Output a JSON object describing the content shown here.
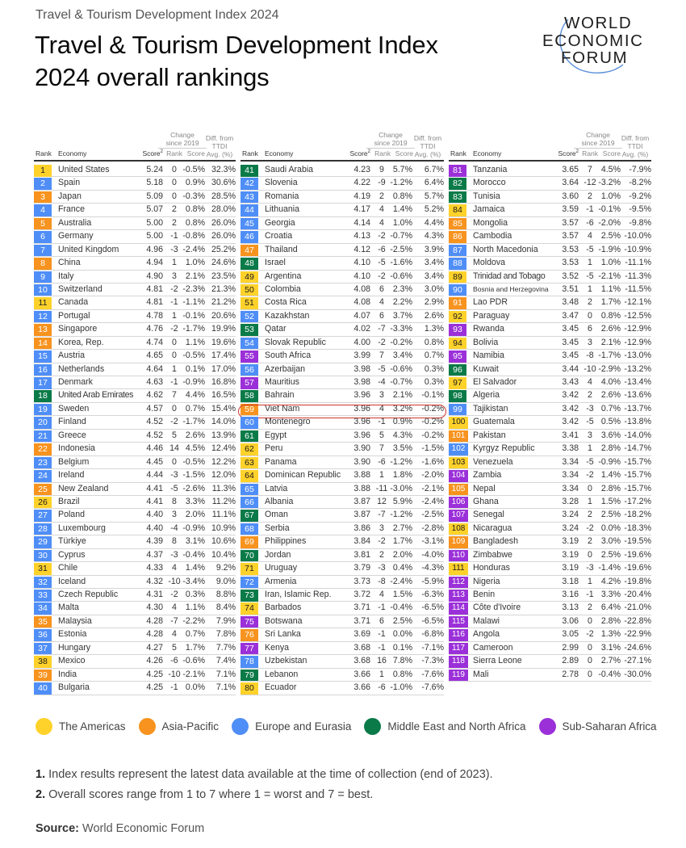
{
  "header": {
    "kicker": "Travel & Tourism Development Index 2024",
    "title_line1": "Travel & Tourism Development Index",
    "title_line2": "2024 overall rankings"
  },
  "logo": {
    "line1": "WORLD",
    "line2": "ECONOMIC",
    "line3": "FORUM"
  },
  "columns": {
    "rank": "Rank",
    "economy": "Economy",
    "score": "Score",
    "score_sup": "2",
    "change_group_1": "Change",
    "change_group_2": "since 2019",
    "change_rank": "Rank",
    "change_score": "Score",
    "diff_1": "Diff. from",
    "diff_2": "TTDI",
    "diff_3": "Avg. (%)"
  },
  "region_colors": {
    "americas": "#FFD22B",
    "asia": "#F7931E",
    "europe": "#4F8EF7",
    "mena": "#0A7A48",
    "ssa": "#9B30D9"
  },
  "highlight": {
    "rank": 59,
    "economy": "Viet Nam",
    "outline_color": "#D0352B"
  },
  "legend": [
    {
      "key": "americas",
      "label": "The Americas",
      "color": "#FFD22B"
    },
    {
      "key": "asia",
      "label": "Asia-Pacific",
      "color": "#F7931E"
    },
    {
      "key": "europe",
      "label": "Europe and Eurasia",
      "color": "#4F8EF7"
    },
    {
      "key": "mena",
      "label": "Middle East and North Africa",
      "color": "#0A7A48"
    },
    {
      "key": "ssa",
      "label": "Sub-Saharan Africa",
      "color": "#9B30D9"
    }
  ],
  "notes": {
    "n1_num": "1.",
    "n1_text": " Index results represent the latest data available at the time of collection (end of 2023).",
    "n2_num": "2.",
    "n2_text": " Overall scores range from 1 to 7 where 1 = worst and 7 = best."
  },
  "source": {
    "label": "Source:",
    "text": " World Economic Forum"
  },
  "chart_data": {
    "type": "table",
    "title": "Travel & Tourism Development Index 2024 overall rankings",
    "columns": [
      "Rank",
      "Economy",
      "Score",
      "Change since 2019 Rank",
      "Change since 2019 Score",
      "Diff. from TTDI Avg. (%)"
    ],
    "rows": [
      [
        1,
        "United States",
        "5.24",
        "0",
        "-0.5%",
        "32.3%",
        "americas"
      ],
      [
        2,
        "Spain",
        "5.18",
        "0",
        "0.9%",
        "30.6%",
        "europe"
      ],
      [
        3,
        "Japan",
        "5.09",
        "0",
        "-0.3%",
        "28.5%",
        "asia"
      ],
      [
        4,
        "France",
        "5.07",
        "2",
        "0.8%",
        "28.0%",
        "europe"
      ],
      [
        5,
        "Australia",
        "5.00",
        "2",
        "0.8%",
        "26.0%",
        "asia"
      ],
      [
        6,
        "Germany",
        "5.00",
        "-1",
        "-0.8%",
        "26.0%",
        "europe"
      ],
      [
        7,
        "United Kingdom",
        "4.96",
        "-3",
        "-2.4%",
        "25.2%",
        "europe"
      ],
      [
        8,
        "China",
        "4.94",
        "1",
        "1.0%",
        "24.6%",
        "asia"
      ],
      [
        9,
        "Italy",
        "4.90",
        "3",
        "2.1%",
        "23.5%",
        "europe"
      ],
      [
        10,
        "Switzerland",
        "4.81",
        "-2",
        "-2.3%",
        "21.3%",
        "europe"
      ],
      [
        11,
        "Canada",
        "4.81",
        "-1",
        "-1.1%",
        "21.2%",
        "americas"
      ],
      [
        12,
        "Portugal",
        "4.78",
        "1",
        "-0.1%",
        "20.6%",
        "europe"
      ],
      [
        13,
        "Singapore",
        "4.76",
        "-2",
        "-1.7%",
        "19.9%",
        "asia"
      ],
      [
        14,
        "Korea, Rep.",
        "4.74",
        "0",
        "1.1%",
        "19.6%",
        "asia"
      ],
      [
        15,
        "Austria",
        "4.65",
        "0",
        "-0.5%",
        "17.4%",
        "europe"
      ],
      [
        16,
        "Netherlands",
        "4.64",
        "1",
        "0.1%",
        "17.0%",
        "europe"
      ],
      [
        17,
        "Denmark",
        "4.63",
        "-1",
        "-0.9%",
        "16.8%",
        "europe"
      ],
      [
        18,
        "United Arab Emirates",
        "4.62",
        "7",
        "4.4%",
        "16.5%",
        "mena"
      ],
      [
        19,
        "Sweden",
        "4.57",
        "0",
        "0.7%",
        "15.4%",
        "europe"
      ],
      [
        20,
        "Finland",
        "4.52",
        "-2",
        "-1.7%",
        "14.0%",
        "europe"
      ],
      [
        21,
        "Greece",
        "4.52",
        "5",
        "2.6%",
        "13.9%",
        "europe"
      ],
      [
        22,
        "Indonesia",
        "4.46",
        "14",
        "4.5%",
        "12.4%",
        "asia"
      ],
      [
        23,
        "Belgium",
        "4.45",
        "0",
        "-0.5%",
        "12.2%",
        "europe"
      ],
      [
        24,
        "Ireland",
        "4.44",
        "-3",
        "-1.5%",
        "12.0%",
        "europe"
      ],
      [
        25,
        "New Zealand",
        "4.41",
        "-5",
        "-2.6%",
        "11.3%",
        "asia"
      ],
      [
        26,
        "Brazil",
        "4.41",
        "8",
        "3.3%",
        "11.2%",
        "americas"
      ],
      [
        27,
        "Poland",
        "4.40",
        "3",
        "2.0%",
        "11.1%",
        "europe"
      ],
      [
        28,
        "Luxembourg",
        "4.40",
        "-4",
        "-0.9%",
        "10.9%",
        "europe"
      ],
      [
        29,
        "Türkiye",
        "4.39",
        "8",
        "3.1%",
        "10.6%",
        "europe"
      ],
      [
        30,
        "Cyprus",
        "4.37",
        "-3",
        "-0.4%",
        "10.4%",
        "europe"
      ],
      [
        31,
        "Chile",
        "4.33",
        "4",
        "1.4%",
        "9.2%",
        "americas"
      ],
      [
        32,
        "Iceland",
        "4.32",
        "-10",
        "-3.4%",
        "9.0%",
        "europe"
      ],
      [
        33,
        "Czech Republic",
        "4.31",
        "-2",
        "0.3%",
        "8.8%",
        "europe"
      ],
      [
        34,
        "Malta",
        "4.30",
        "4",
        "1.1%",
        "8.4%",
        "europe"
      ],
      [
        35,
        "Malaysia",
        "4.28",
        "-7",
        "-2.2%",
        "7.9%",
        "asia"
      ],
      [
        36,
        "Estonia",
        "4.28",
        "4",
        "0.7%",
        "7.8%",
        "europe"
      ],
      [
        37,
        "Hungary",
        "4.27",
        "5",
        "1.7%",
        "7.7%",
        "europe"
      ],
      [
        38,
        "Mexico",
        "4.26",
        "-6",
        "-0.6%",
        "7.4%",
        "americas"
      ],
      [
        39,
        "India",
        "4.25",
        "-10",
        "-2.1%",
        "7.1%",
        "asia"
      ],
      [
        40,
        "Bulgaria",
        "4.25",
        "-1",
        "0.0%",
        "7.1%",
        "europe"
      ],
      [
        41,
        "Saudi Arabia",
        "4.23",
        "9",
        "5.7%",
        "6.7%",
        "mena"
      ],
      [
        42,
        "Slovenia",
        "4.22",
        "-9",
        "-1.2%",
        "6.4%",
        "europe"
      ],
      [
        43,
        "Romania",
        "4.19",
        "2",
        "0.8%",
        "5.7%",
        "europe"
      ],
      [
        44,
        "Lithuania",
        "4.17",
        "4",
        "1.4%",
        "5.2%",
        "europe"
      ],
      [
        45,
        "Georgia",
        "4.14",
        "4",
        "1.0%",
        "4.4%",
        "europe"
      ],
      [
        46,
        "Croatia",
        "4.13",
        "-2",
        "-0.7%",
        "4.3%",
        "europe"
      ],
      [
        47,
        "Thailand",
        "4.12",
        "-6",
        "-2.5%",
        "3.9%",
        "asia"
      ],
      [
        48,
        "Israel",
        "4.10",
        "-5",
        "-1.6%",
        "3.4%",
        "mena"
      ],
      [
        49,
        "Argentina",
        "4.10",
        "-2",
        "-0.6%",
        "3.4%",
        "americas"
      ],
      [
        50,
        "Colombia",
        "4.08",
        "6",
        "2.3%",
        "3.0%",
        "americas"
      ],
      [
        51,
        "Costa Rica",
        "4.08",
        "4",
        "2.2%",
        "2.9%",
        "americas"
      ],
      [
        52,
        "Kazakhstan",
        "4.07",
        "6",
        "3.7%",
        "2.6%",
        "europe"
      ],
      [
        53,
        "Qatar",
        "4.02",
        "-7",
        "-3.3%",
        "1.3%",
        "mena"
      ],
      [
        54,
        "Slovak Republic",
        "4.00",
        "-2",
        "-0.2%",
        "0.8%",
        "europe"
      ],
      [
        55,
        "South Africa",
        "3.99",
        "7",
        "3.4%",
        "0.7%",
        "ssa"
      ],
      [
        56,
        "Azerbaijan",
        "3.98",
        "-5",
        "-0.6%",
        "0.3%",
        "europe"
      ],
      [
        57,
        "Mauritius",
        "3.98",
        "-4",
        "-0.7%",
        "0.3%",
        "ssa"
      ],
      [
        58,
        "Bahrain",
        "3.96",
        "3",
        "2.1%",
        "-0.1%",
        "mena"
      ],
      [
        59,
        "Viet Nam",
        "3.96",
        "4",
        "3.2%",
        "-0.2%",
        "asia"
      ],
      [
        60,
        "Montenegro",
        "3.96",
        "-1",
        "0.9%",
        "-0.2%",
        "europe"
      ],
      [
        61,
        "Egypt",
        "3.96",
        "5",
        "4.3%",
        "-0.2%",
        "mena"
      ],
      [
        62,
        "Peru",
        "3.90",
        "7",
        "3.5%",
        "-1.5%",
        "americas"
      ],
      [
        63,
        "Panama",
        "3.90",
        "-6",
        "-1.2%",
        "-1.6%",
        "americas"
      ],
      [
        64,
        "Dominican Republic",
        "3.88",
        "1",
        "1.8%",
        "-2.0%",
        "americas"
      ],
      [
        65,
        "Latvia",
        "3.88",
        "-11",
        "-3.0%",
        "-2.1%",
        "europe"
      ],
      [
        66,
        "Albania",
        "3.87",
        "12",
        "5.9%",
        "-2.4%",
        "europe"
      ],
      [
        67,
        "Oman",
        "3.87",
        "-7",
        "-1.2%",
        "-2.5%",
        "mena"
      ],
      [
        68,
        "Serbia",
        "3.86",
        "3",
        "2.7%",
        "-2.8%",
        "europe"
      ],
      [
        69,
        "Philippines",
        "3.84",
        "-2",
        "1.7%",
        "-3.1%",
        "asia"
      ],
      [
        70,
        "Jordan",
        "3.81",
        "2",
        "2.0%",
        "-4.0%",
        "mena"
      ],
      [
        71,
        "Uruguay",
        "3.79",
        "-3",
        "0.4%",
        "-4.3%",
        "americas"
      ],
      [
        72,
        "Armenia",
        "3.73",
        "-8",
        "-2.4%",
        "-5.9%",
        "europe"
      ],
      [
        73,
        "Iran, Islamic Rep.",
        "3.72",
        "4",
        "1.5%",
        "-6.3%",
        "mena"
      ],
      [
        74,
        "Barbados",
        "3.71",
        "-1",
        "-0.4%",
        "-6.5%",
        "americas"
      ],
      [
        75,
        "Botswana",
        "3.71",
        "6",
        "2.5%",
        "-6.5%",
        "ssa"
      ],
      [
        76,
        "Sri Lanka",
        "3.69",
        "-1",
        "0.0%",
        "-6.8%",
        "asia"
      ],
      [
        77,
        "Kenya",
        "3.68",
        "-1",
        "0.1%",
        "-7.1%",
        "ssa"
      ],
      [
        78,
        "Uzbekistan",
        "3.68",
        "16",
        "7.8%",
        "-7.3%",
        "europe"
      ],
      [
        79,
        "Lebanon",
        "3.66",
        "1",
        "0.8%",
        "-7.6%",
        "mena"
      ],
      [
        80,
        "Ecuador",
        "3.66",
        "-6",
        "-1.0%",
        "-7.6%",
        "americas"
      ],
      [
        81,
        "Tanzania",
        "3.65",
        "7",
        "4.5%",
        "-7.9%",
        "ssa"
      ],
      [
        82,
        "Morocco",
        "3.64",
        "-12",
        "-3.2%",
        "-8.2%",
        "mena"
      ],
      [
        83,
        "Tunisia",
        "3.60",
        "2",
        "1.0%",
        "-9.2%",
        "mena"
      ],
      [
        84,
        "Jamaica",
        "3.59",
        "-1",
        "-0.1%",
        "-9.5%",
        "americas"
      ],
      [
        85,
        "Mongolia",
        "3.57",
        "-6",
        "-2.0%",
        "-9.8%",
        "asia"
      ],
      [
        86,
        "Cambodia",
        "3.57",
        "4",
        "2.5%",
        "-10.0%",
        "asia"
      ],
      [
        87,
        "North Macedonia",
        "3.53",
        "-5",
        "-1.9%",
        "-10.9%",
        "europe"
      ],
      [
        88,
        "Moldova",
        "3.53",
        "1",
        "1.0%",
        "-11.1%",
        "europe"
      ],
      [
        89,
        "Trinidad and Tobago",
        "3.52",
        "-5",
        "-2.1%",
        "-11.3%",
        "americas"
      ],
      [
        90,
        "Bosnia and Herzegovina",
        "3.51",
        "1",
        "1.1%",
        "-11.5%",
        "europe"
      ],
      [
        91,
        "Lao PDR",
        "3.48",
        "2",
        "1.7%",
        "-12.1%",
        "asia"
      ],
      [
        92,
        "Paraguay",
        "3.47",
        "0",
        "0.8%",
        "-12.5%",
        "americas"
      ],
      [
        93,
        "Rwanda",
        "3.45",
        "6",
        "2.6%",
        "-12.9%",
        "ssa"
      ],
      [
        94,
        "Bolivia",
        "3.45",
        "3",
        "2.1%",
        "-12.9%",
        "americas"
      ],
      [
        95,
        "Namibia",
        "3.45",
        "-8",
        "-1.7%",
        "-13.0%",
        "ssa"
      ],
      [
        96,
        "Kuwait",
        "3.44",
        "-10",
        "-2.9%",
        "-13.2%",
        "mena"
      ],
      [
        97,
        "El Salvador",
        "3.43",
        "4",
        "4.0%",
        "-13.4%",
        "americas"
      ],
      [
        98,
        "Algeria",
        "3.42",
        "2",
        "2.6%",
        "-13.6%",
        "mena"
      ],
      [
        99,
        "Tajikistan",
        "3.42",
        "-3",
        "0.7%",
        "-13.7%",
        "europe"
      ],
      [
        100,
        "Guatemala",
        "3.42",
        "-5",
        "0.5%",
        "-13.8%",
        "americas"
      ],
      [
        101,
        "Pakistan",
        "3.41",
        "3",
        "3.6%",
        "-14.0%",
        "asia"
      ],
      [
        102,
        "Kyrgyz Republic",
        "3.38",
        "1",
        "2.8%",
        "-14.7%",
        "europe"
      ],
      [
        103,
        "Venezuela",
        "3.34",
        "-5",
        "-0.9%",
        "-15.7%",
        "americas"
      ],
      [
        104,
        "Zambia",
        "3.34",
        "-2",
        "1.4%",
        "-15.7%",
        "ssa"
      ],
      [
        105,
        "Nepal",
        "3.34",
        "0",
        "2.8%",
        "-15.7%",
        "asia"
      ],
      [
        106,
        "Ghana",
        "3.28",
        "1",
        "1.5%",
        "-17.2%",
        "ssa"
      ],
      [
        107,
        "Senegal",
        "3.24",
        "2",
        "2.5%",
        "-18.2%",
        "ssa"
      ],
      [
        108,
        "Nicaragua",
        "3.24",
        "-2",
        "0.0%",
        "-18.3%",
        "americas"
      ],
      [
        109,
        "Bangladesh",
        "3.19",
        "2",
        "3.0%",
        "-19.5%",
        "asia"
      ],
      [
        110,
        "Zimbabwe",
        "3.19",
        "0",
        "2.5%",
        "-19.6%",
        "ssa"
      ],
      [
        111,
        "Honduras",
        "3.19",
        "-3",
        "-1.4%",
        "-19.6%",
        "americas"
      ],
      [
        112,
        "Nigeria",
        "3.18",
        "1",
        "4.2%",
        "-19.8%",
        "ssa"
      ],
      [
        113,
        "Benin",
        "3.16",
        "-1",
        "3.3%",
        "-20.4%",
        "ssa"
      ],
      [
        114,
        "Côte d'Ivoire",
        "3.13",
        "2",
        "6.4%",
        "-21.0%",
        "ssa"
      ],
      [
        115,
        "Malawi",
        "3.06",
        "0",
        "2.8%",
        "-22.8%",
        "ssa"
      ],
      [
        116,
        "Angola",
        "3.05",
        "-2",
        "1.3%",
        "-22.9%",
        "ssa"
      ],
      [
        117,
        "Cameroon",
        "2.99",
        "0",
        "3.1%",
        "-24.6%",
        "ssa"
      ],
      [
        118,
        "Sierra Leone",
        "2.89",
        "0",
        "2.7%",
        "-27.1%",
        "ssa"
      ],
      [
        119,
        "Mali",
        "2.78",
        "0",
        "-0.4%",
        "-30.0%",
        "ssa"
      ]
    ]
  }
}
